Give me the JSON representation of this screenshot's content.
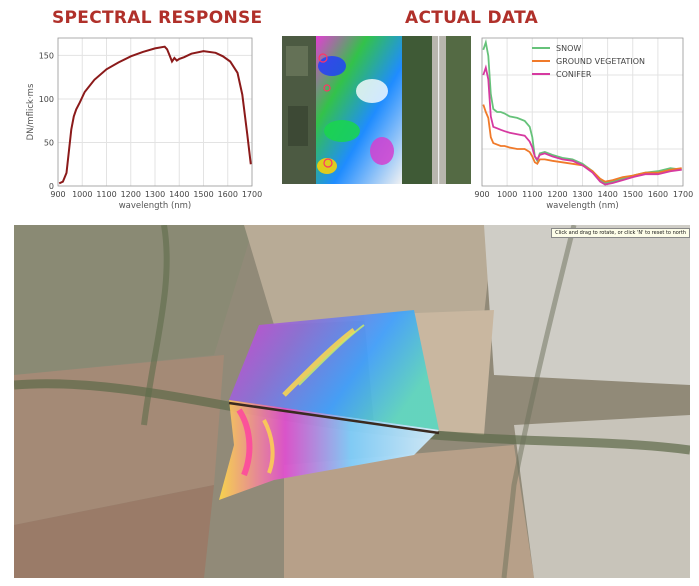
{
  "headings": {
    "left": "SPECTRAL RESPONSE",
    "right": "ACTUAL DATA"
  },
  "colors": {
    "heading": "#b0302a",
    "spectral_line": "#8b1a1a",
    "snow": "#66c27a",
    "ground_vegetation": "#f07a2a",
    "conifer": "#d63aa0"
  },
  "map": {
    "tooltip": "Click and drag to rotate, or click 'N' to reset to north"
  },
  "chart_data": [
    {
      "type": "line",
      "title": "SPECTRAL RESPONSE",
      "xlabel": "wavelength (nm)",
      "ylabel": "DN/mflick·ms",
      "xlim": [
        900,
        1700
      ],
      "ylim": [
        0,
        170
      ],
      "xticks": [
        900,
        1000,
        1100,
        1200,
        1300,
        1400,
        1500,
        1600,
        1700
      ],
      "yticks": [
        0,
        50,
        100,
        150
      ],
      "grid": true,
      "series": [
        {
          "x": [
            905,
            920,
            935,
            945,
            955,
            965,
            975,
            990,
            1010,
            1050,
            1100,
            1150,
            1200,
            1250,
            1300,
            1340,
            1350,
            1360,
            1370,
            1380,
            1390,
            1400,
            1420,
            1450,
            1500,
            1550,
            1580,
            1610,
            1640,
            1660,
            1680,
            1695
          ],
          "y": [
            3,
            5,
            15,
            40,
            65,
            80,
            88,
            96,
            108,
            122,
            134,
            142,
            149,
            154,
            158,
            160,
            157,
            150,
            143,
            147,
            144,
            146,
            148,
            152,
            155,
            153,
            149,
            143,
            130,
            105,
            60,
            25
          ]
        }
      ]
    },
    {
      "type": "line",
      "xlabel": "wavelength (nm)",
      "xlim": [
        900,
        1700
      ],
      "xticks": [
        900,
        1000,
        1100,
        1200,
        1300,
        1400,
        1500,
        1600,
        1700
      ],
      "grid": true,
      "legend": "top-right",
      "series": [
        {
          "name": "SNOW",
          "x": [
            905,
            915,
            925,
            935,
            945,
            960,
            975,
            990,
            1010,
            1040,
            1070,
            1090,
            1100,
            1110,
            1120,
            1130,
            1150,
            1180,
            1220,
            1260,
            1300,
            1340,
            1370,
            1390,
            1420,
            1460,
            1500,
            1550,
            1600,
            1650,
            1695
          ],
          "y": [
            0.92,
            0.97,
            0.88,
            0.62,
            0.52,
            0.5,
            0.5,
            0.49,
            0.47,
            0.46,
            0.44,
            0.4,
            0.33,
            0.2,
            0.17,
            0.22,
            0.23,
            0.21,
            0.19,
            0.18,
            0.15,
            0.1,
            0.04,
            0.02,
            0.03,
            0.05,
            0.07,
            0.09,
            0.1,
            0.12,
            0.11
          ]
        },
        {
          "name": "GROUND VEGETATION",
          "x": [
            905,
            915,
            925,
            935,
            945,
            960,
            975,
            990,
            1010,
            1040,
            1070,
            1090,
            1100,
            1110,
            1120,
            1130,
            1150,
            1180,
            1220,
            1260,
            1300,
            1340,
            1370,
            1390,
            1420,
            1460,
            1500,
            1550,
            1600,
            1650,
            1695
          ],
          "y": [
            0.55,
            0.5,
            0.46,
            0.33,
            0.29,
            0.28,
            0.27,
            0.27,
            0.26,
            0.25,
            0.25,
            0.23,
            0.2,
            0.16,
            0.15,
            0.18,
            0.18,
            0.17,
            0.16,
            0.15,
            0.14,
            0.1,
            0.05,
            0.03,
            0.04,
            0.06,
            0.07,
            0.09,
            0.09,
            0.11,
            0.12
          ]
        },
        {
          "name": "CONIFER",
          "x": [
            905,
            915,
            925,
            935,
            945,
            960,
            975,
            990,
            1010,
            1040,
            1070,
            1090,
            1100,
            1110,
            1120,
            1130,
            1150,
            1180,
            1220,
            1260,
            1300,
            1340,
            1370,
            1390,
            1420,
            1460,
            1500,
            1550,
            1600,
            1650,
            1695
          ],
          "y": [
            0.75,
            0.8,
            0.72,
            0.47,
            0.4,
            0.39,
            0.38,
            0.37,
            0.36,
            0.35,
            0.34,
            0.3,
            0.26,
            0.2,
            0.18,
            0.21,
            0.22,
            0.2,
            0.18,
            0.17,
            0.14,
            0.09,
            0.03,
            0.01,
            0.02,
            0.04,
            0.06,
            0.08,
            0.08,
            0.1,
            0.11
          ]
        }
      ]
    }
  ]
}
